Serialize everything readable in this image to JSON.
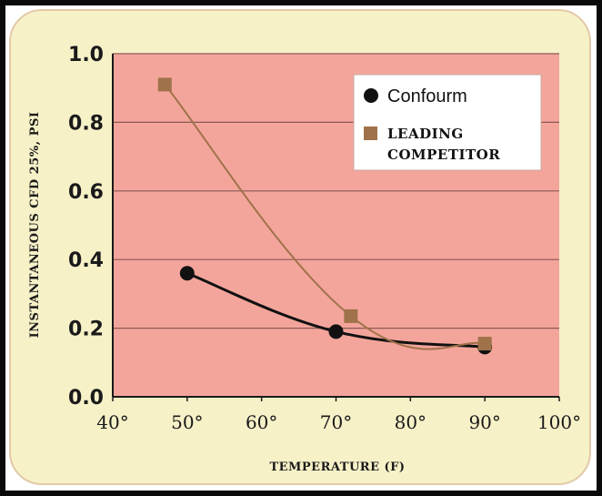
{
  "chart_data": {
    "type": "scatter",
    "ylabel": "INSTANTANEOUS CFD 25%, PSI",
    "xlabel": "TEMPERATURE (F)",
    "xlim": [
      40,
      100
    ],
    "ylim": [
      0,
      1.0
    ],
    "x_ticks": [
      "40°",
      "50°",
      "60°",
      "70°",
      "80°",
      "90°",
      "100°"
    ],
    "y_ticks": [
      "0.0",
      "0.2",
      "0.4",
      "0.6",
      "0.8",
      "1.0"
    ],
    "grid": "horizontal",
    "legend_position": "top-right",
    "series": [
      {
        "name": "Confourm",
        "marker": "circle",
        "color": "#111111",
        "points": [
          {
            "x": 50,
            "y": 0.36
          },
          {
            "x": 70,
            "y": 0.19
          },
          {
            "x": 90,
            "y": 0.145
          }
        ]
      },
      {
        "name_lines": [
          "LEADING",
          "COMPETITOR"
        ],
        "marker": "square",
        "color": "#a0724a",
        "points": [
          {
            "x": 47,
            "y": 0.91
          },
          {
            "x": 72,
            "y": 0.235
          },
          {
            "x": 90,
            "y": 0.155
          }
        ]
      }
    ],
    "colors": {
      "plot_bg": "#f4a59b",
      "panel_bg": "#f7f1c8",
      "grid": "#8a5a55"
    }
  }
}
